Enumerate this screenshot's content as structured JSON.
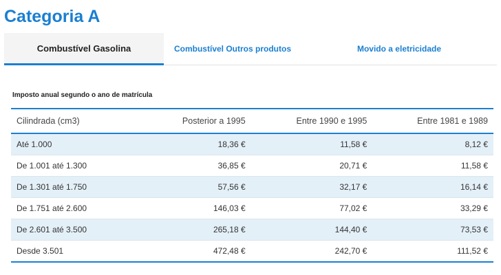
{
  "page": {
    "title": "Categoria A"
  },
  "tabs": [
    {
      "label": "Combustível Gasolina",
      "active": true
    },
    {
      "label": "Combustível Outros produtos",
      "active": false
    },
    {
      "label": "Movido a eletricidade",
      "active": false
    }
  ],
  "table": {
    "caption": "Imposto anual segundo o ano de matrícula",
    "headers": [
      "Cilindrada (cm3)",
      "Posterior a 1995",
      "Entre 1990 e 1995",
      "Entre 1981 e 1989"
    ],
    "rows": [
      [
        "Até 1.000",
        "18,36 €",
        "11,58 €",
        "8,12 €"
      ],
      [
        "De 1.001 até 1.300",
        "36,85 €",
        "20,71 €",
        "11,58 €"
      ],
      [
        "De 1.301 até 1.750",
        "57,56 €",
        "32,17 €",
        "16,14 €"
      ],
      [
        "De 1.751 até 2.600",
        "146,03 €",
        "77,02 €",
        "33,29 €"
      ],
      [
        "De 2.601 até 3.500",
        "265,18 €",
        "144,40 €",
        "73,53 €"
      ],
      [
        "Desde 3.501",
        "472,48 €",
        "242,70 €",
        "111,52 €"
      ]
    ]
  },
  "colors": {
    "accent": "#1a7fd1",
    "row_shade": "#e4f0f8",
    "active_tab_bg": "#f4f4f4"
  }
}
